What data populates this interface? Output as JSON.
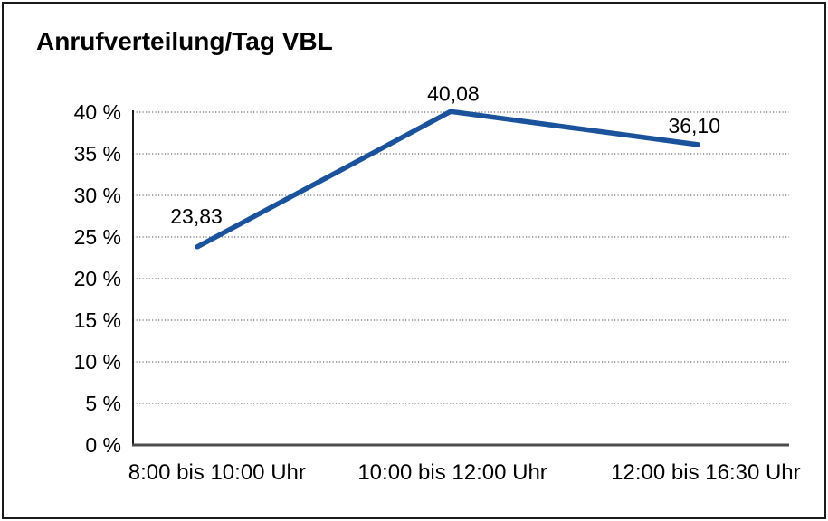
{
  "window": {
    "background_color": "#ffffff",
    "border_color": "#1a1a1a"
  },
  "chart": {
    "title": "Anrufverteilung/Tag VBL"
  },
  "chart_data": {
    "type": "line",
    "title": "Anrufverteilung/Tag VBL",
    "categories": [
      "8:00 bis 10:00 Uhr",
      "10:00 bis 12:00 Uhr",
      "12:00 bis 16:30 Uhr"
    ],
    "values": [
      23.83,
      40.08,
      36.1
    ],
    "point_labels": [
      "23,83",
      "40,08",
      "36,10"
    ],
    "xlabel": "",
    "ylabel": "",
    "ylim": [
      0,
      40
    ],
    "ytick_step": 5,
    "ytick_labels": [
      "0 %",
      "5 %",
      "10 %",
      "15 %",
      "20 %",
      "25 %",
      "30 %",
      "35 %",
      "40 %"
    ],
    "grid": "horizontal-dotted",
    "legend": "none",
    "line_color": "#1A529C",
    "yaxis_color": "#1a1a1a",
    "xaxis_color": "#4d4d4d",
    "grid_color": "#6e6e6e",
    "label_color": "#000000"
  }
}
